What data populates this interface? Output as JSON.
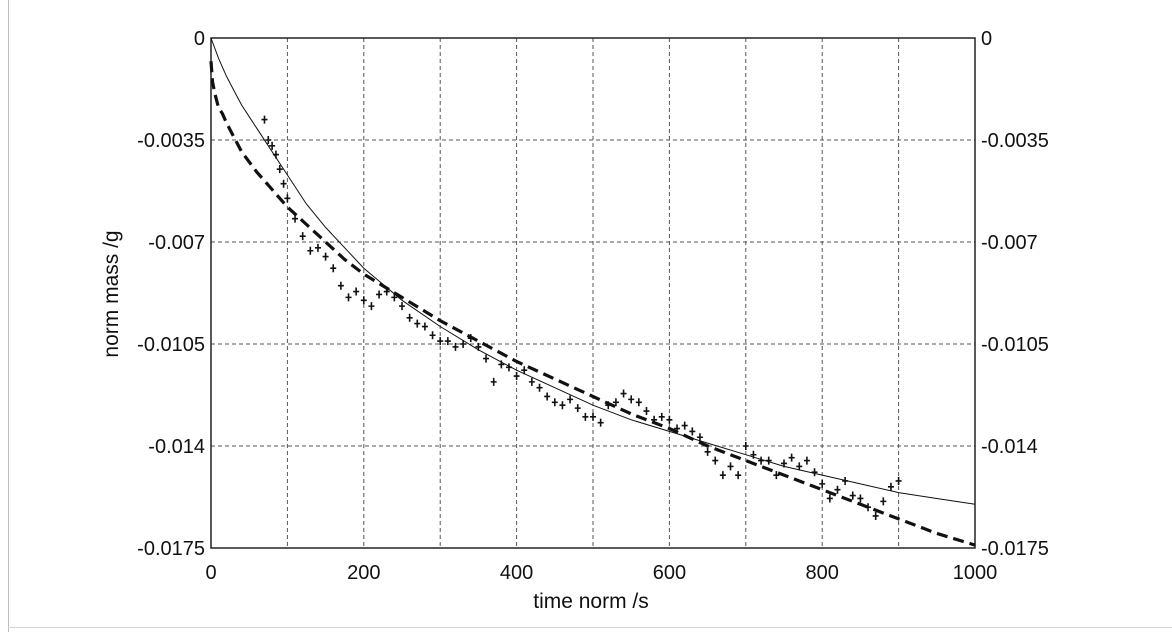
{
  "chart_data": {
    "type": "scatter",
    "xlabel": "time norm  /s",
    "ylabel": "norm mass  /g",
    "xlim": [
      0,
      1000
    ],
    "ylim": [
      -0.0175,
      0
    ],
    "xticks": [
      0,
      200,
      400,
      600,
      800,
      1000
    ],
    "xtick_labels": [
      "0",
      "200",
      "400",
      "600",
      "800",
      "1000"
    ],
    "yticks": [
      0,
      -0.0035,
      -0.007,
      -0.0105,
      -0.014,
      -0.0175
    ],
    "ytick_labels": [
      "0",
      "-0.0035",
      "-0.007",
      "-0.0105",
      "-0.014",
      "-0.0175"
    ],
    "right_ytick_labels": [
      "0",
      "-0.0035",
      "-0.007",
      "-0.0105",
      "-0.014",
      "-0.0175"
    ],
    "grid": true,
    "grid_x": [
      100,
      200,
      300,
      400,
      500,
      600,
      700,
      800,
      900
    ],
    "series": [
      {
        "style": "markers",
        "marker": "+",
        "color": "#111111",
        "x": [
          70,
          75,
          80,
          85,
          90,
          95,
          100,
          110,
          120,
          130,
          140,
          150,
          160,
          170,
          180,
          190,
          200,
          210,
          220,
          230,
          240,
          250,
          260,
          270,
          280,
          290,
          300,
          310,
          320,
          330,
          340,
          350,
          360,
          370,
          380,
          390,
          400,
          410,
          420,
          430,
          440,
          450,
          460,
          470,
          480,
          490,
          500,
          510,
          520,
          530,
          540,
          550,
          560,
          570,
          580,
          590,
          600,
          610,
          620,
          630,
          640,
          650,
          660,
          670,
          680,
          690,
          700,
          710,
          720,
          730,
          740,
          750,
          760,
          770,
          780,
          790,
          800,
          810,
          820,
          830,
          840,
          850,
          860,
          870,
          880,
          890,
          900
        ],
        "y": [
          -0.0028,
          -0.0035,
          -0.0037,
          -0.004,
          -0.0045,
          -0.005,
          -0.0055,
          -0.0062,
          -0.0068,
          -0.0073,
          -0.0072,
          -0.0075,
          -0.0079,
          -0.0085,
          -0.0089,
          -0.0087,
          -0.009,
          -0.0092,
          -0.0088,
          -0.0087,
          -0.0089,
          -0.0092,
          -0.0096,
          -0.0098,
          -0.0099,
          -0.0102,
          -0.0104,
          -0.0104,
          -0.0106,
          -0.0105,
          -0.0103,
          -0.0106,
          -0.011,
          -0.0118,
          -0.0112,
          -0.0113,
          -0.0116,
          -0.0114,
          -0.0118,
          -0.012,
          -0.0123,
          -0.0125,
          -0.0126,
          -0.0124,
          -0.0127,
          -0.013,
          -0.013,
          -0.0132,
          -0.0126,
          -0.0125,
          -0.0122,
          -0.0124,
          -0.0125,
          -0.0128,
          -0.0131,
          -0.013,
          -0.0131,
          -0.0134,
          -0.0133,
          -0.0135,
          -0.0137,
          -0.0142,
          -0.0145,
          -0.015,
          -0.0147,
          -0.015,
          -0.014,
          -0.0143,
          -0.0145,
          -0.0145,
          -0.015,
          -0.0146,
          -0.0144,
          -0.0147,
          -0.0145,
          -0.0149,
          -0.0153,
          -0.0158,
          -0.0155,
          -0.0152,
          -0.0157,
          -0.0158,
          -0.0161,
          -0.0164,
          -0.0159,
          -0.0154,
          -0.0152
        ]
      },
      {
        "style": "solid-line",
        "color": "#111111",
        "x": [
          0,
          10,
          20,
          30,
          40,
          50,
          60,
          80,
          100,
          125,
          150,
          175,
          200,
          250,
          300,
          350,
          400,
          450,
          500,
          550,
          600,
          650,
          700,
          750,
          800,
          850,
          900,
          950,
          1000
        ],
        "y": [
          0,
          -0.0007,
          -0.0013,
          -0.0018,
          -0.0023,
          -0.0027,
          -0.0031,
          -0.0039,
          -0.0047,
          -0.0057,
          -0.0065,
          -0.0072,
          -0.0079,
          -0.009,
          -0.0099,
          -0.0107,
          -0.0114,
          -0.012,
          -0.0126,
          -0.0131,
          -0.0135,
          -0.0139,
          -0.0143,
          -0.0147,
          -0.015,
          -0.0153,
          -0.0156,
          -0.0158,
          -0.016
        ]
      },
      {
        "style": "dashed-line",
        "color": "#111111",
        "x": [
          0,
          2,
          5,
          10,
          15,
          20,
          30,
          40,
          60,
          80,
          100,
          125,
          150,
          175,
          200,
          250,
          300,
          350,
          400,
          450,
          500,
          550,
          600,
          650,
          700,
          750,
          800,
          850,
          900,
          950,
          1000
        ],
        "y": [
          -0.0008,
          -0.0015,
          -0.0019,
          -0.0024,
          -0.0026,
          -0.0029,
          -0.0034,
          -0.0039,
          -0.0046,
          -0.0052,
          -0.0058,
          -0.0064,
          -0.007,
          -0.0076,
          -0.0081,
          -0.0089,
          -0.0097,
          -0.0104,
          -0.0111,
          -0.0117,
          -0.0123,
          -0.0129,
          -0.0134,
          -0.014,
          -0.0145,
          -0.015,
          -0.0155,
          -0.016,
          -0.0165,
          -0.017,
          -0.0174
        ]
      }
    ]
  }
}
